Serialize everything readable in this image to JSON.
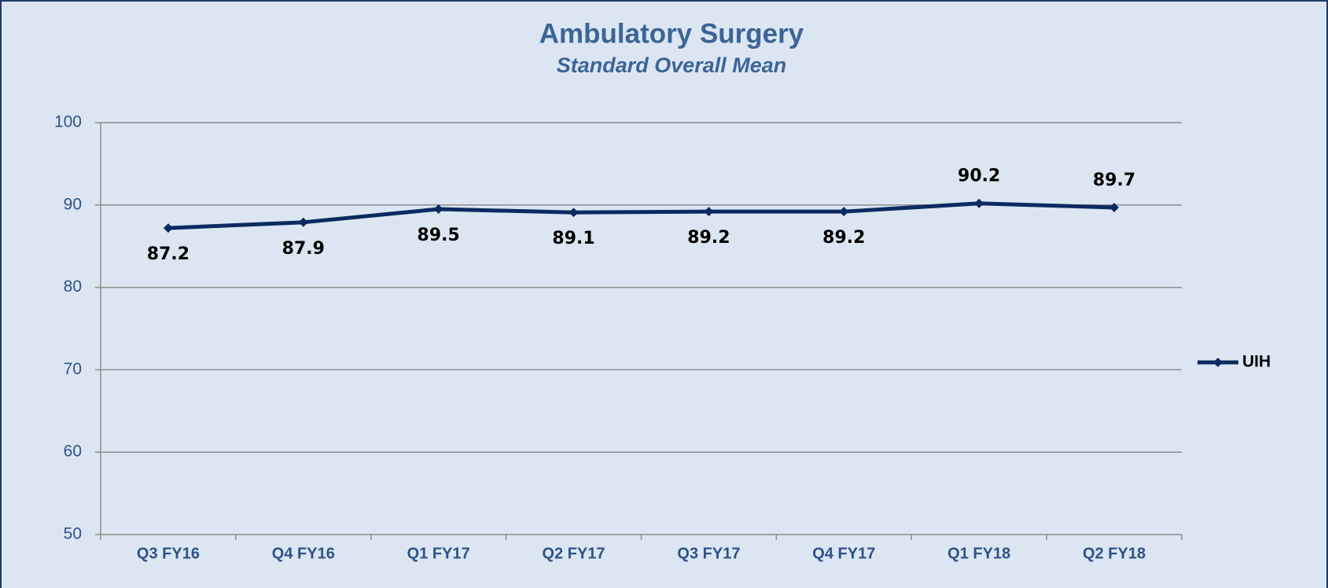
{
  "chart_data": {
    "type": "line",
    "title": "Ambulatory Surgery",
    "subtitle": "Standard Overall Mean",
    "categories": [
      "Q3 FY16",
      "Q4 FY16",
      "Q1 FY17",
      "Q2 FY17",
      "Q3 FY17",
      "Q4 FY17",
      "Q1 FY18",
      "Q2 FY18"
    ],
    "series": [
      {
        "name": "UIH",
        "color": "#0c2a60",
        "values": [
          87.2,
          87.9,
          89.5,
          89.1,
          89.2,
          89.2,
          90.2,
          89.7
        ]
      }
    ],
    "ylim": [
      50,
      100
    ],
    "yticks": [
      50,
      60,
      70,
      80,
      90,
      100
    ],
    "grid": true,
    "legend": "right"
  }
}
